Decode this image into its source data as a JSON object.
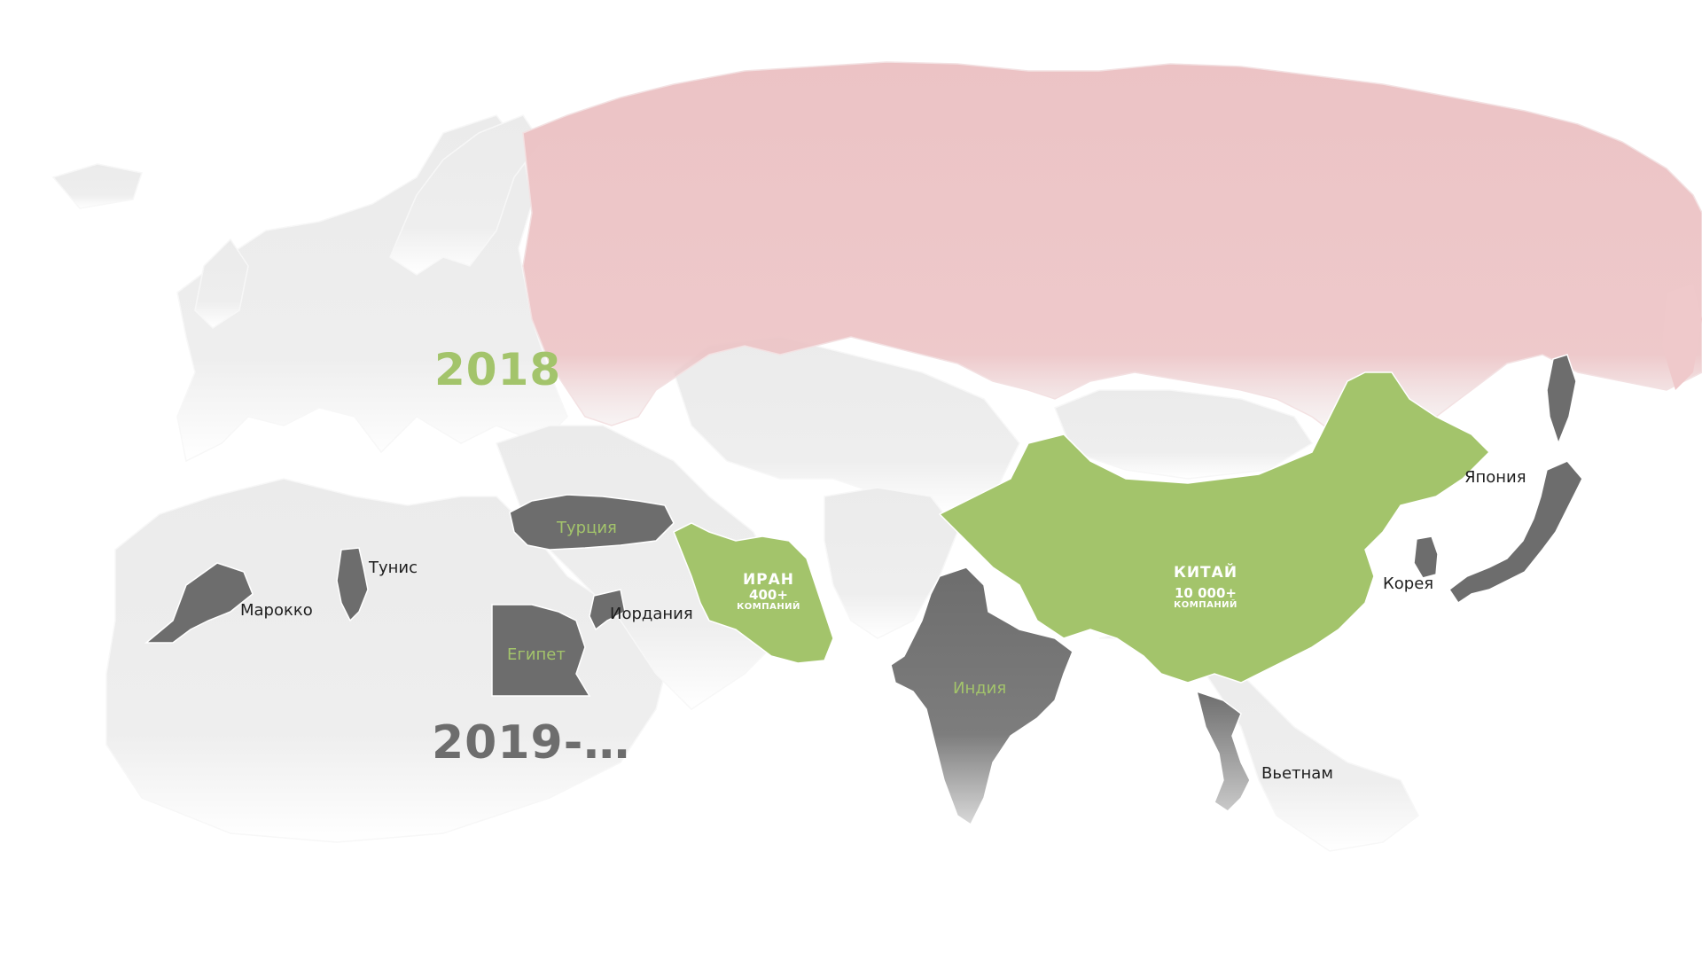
{
  "years": {
    "first": "2018",
    "second": "2019-…"
  },
  "colors": {
    "green": "#a3c46b",
    "dark_gray": "#6d6d6d",
    "light_land": "#ececec",
    "russia": "#e9c2c4",
    "label_dark": "#1e1e1e"
  },
  "countries_2018": [
    {
      "id": "iran",
      "name": "ИРАН",
      "count": "400+",
      "unit": "КОМПАНИЙ"
    },
    {
      "id": "china",
      "name": "КИТАЙ",
      "count": "10 000+",
      "unit": "КОМПАНИЙ"
    }
  ],
  "countries_2019": {
    "turkey": "Турция",
    "egypt": "Египет",
    "india": "Индия",
    "tunisia": "Тунис",
    "morocco": "Марокко",
    "jordan": "Иордания",
    "japan": "Япония",
    "korea": "Корея",
    "vietnam": "Вьетнам"
  }
}
